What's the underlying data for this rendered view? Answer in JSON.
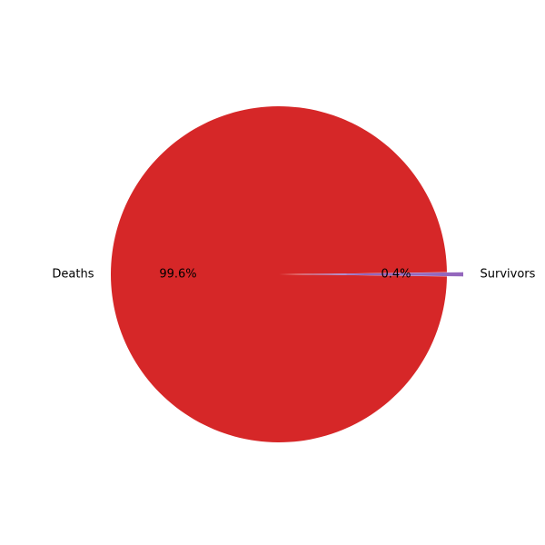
{
  "chart_data": {
    "type": "pie",
    "title": "",
    "slices": [
      {
        "label": "Deaths",
        "value": 99.6,
        "pct_label": "99.6%",
        "color": "#d62728",
        "explode": false
      },
      {
        "label": "Survivors",
        "value": 0.4,
        "pct_label": "0.4%",
        "color": "#9467bd",
        "explode": true
      }
    ],
    "legend": "none"
  }
}
